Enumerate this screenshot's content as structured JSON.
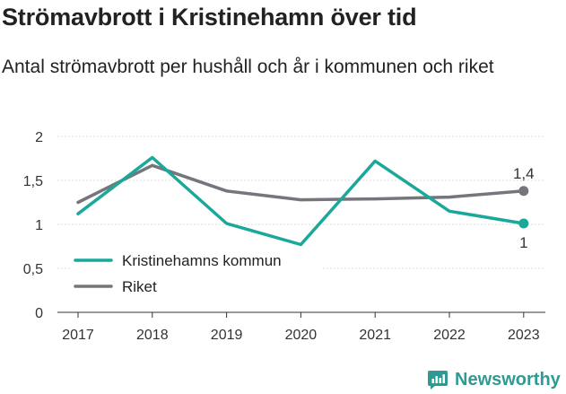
{
  "title": "Strömavbrott i Kristinehamn över tid",
  "subtitle": "Antal strömavbrott per hushåll och år i kommunen och riket",
  "brand": "Newsworthy",
  "chart_data": {
    "type": "line",
    "x": [
      "2017",
      "2018",
      "2019",
      "2020",
      "2021",
      "2022",
      "2023"
    ],
    "ylim": [
      0,
      2
    ],
    "yticks": [
      {
        "value": 0,
        "label": "0"
      },
      {
        "value": 0.5,
        "label": "0,5"
      },
      {
        "value": 1,
        "label": "1"
      },
      {
        "value": 1.5,
        "label": "1,5"
      },
      {
        "value": 2,
        "label": "2"
      }
    ],
    "grid": true,
    "legend_position": "bottom-left",
    "series": [
      {
        "name": "Kristinehamns kommun",
        "color": "#1aa89a",
        "values": [
          1.12,
          1.76,
          1.01,
          0.77,
          1.72,
          1.15,
          1.01
        ],
        "end_label": "1",
        "end_label_position": "below"
      },
      {
        "name": "Riket",
        "color": "#75767c",
        "values": [
          1.25,
          1.67,
          1.38,
          1.28,
          1.29,
          1.31,
          1.38
        ],
        "end_label": "1,4",
        "end_label_position": "above"
      }
    ]
  }
}
